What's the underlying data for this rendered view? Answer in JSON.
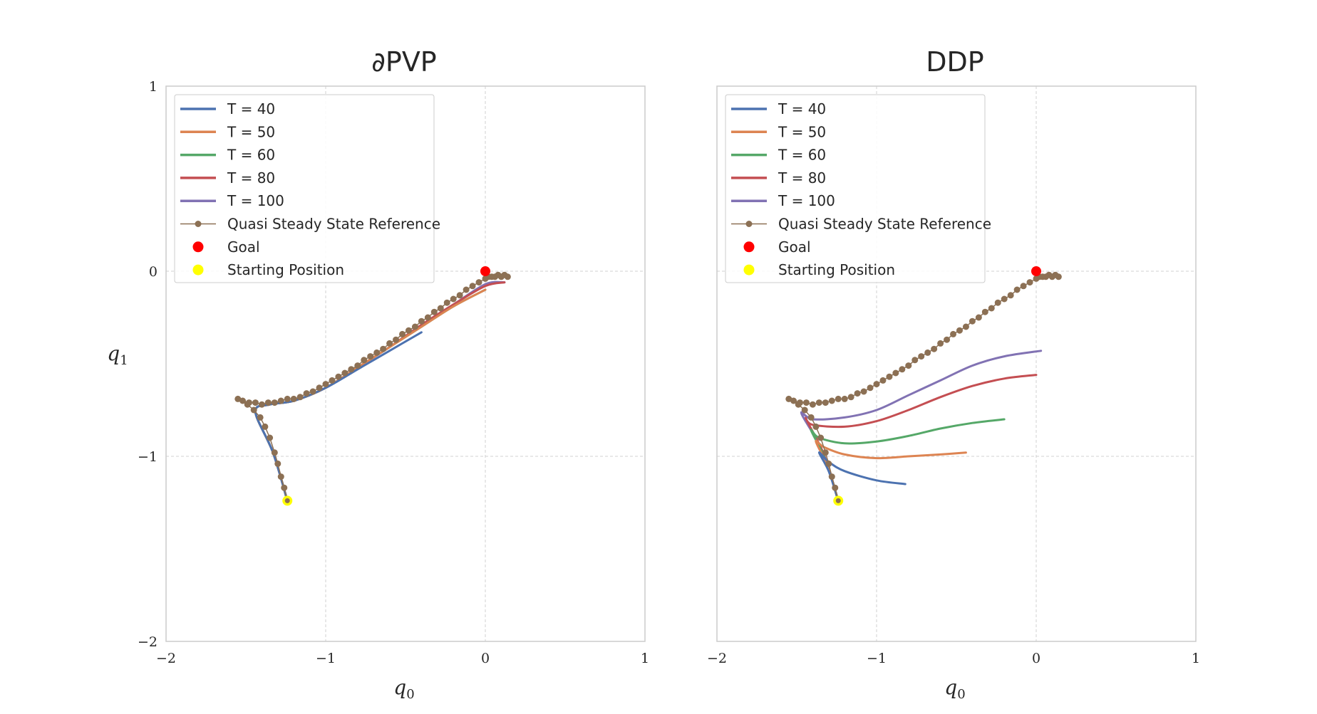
{
  "colors": {
    "T40": "#4c72b0",
    "T50": "#dd8452",
    "T60": "#55a868",
    "T80": "#c44e52",
    "T100": "#8172b3",
    "reference": "#8c7054",
    "goal": "#ff0000",
    "start": "#ffff00",
    "grid": "#d0d0d0",
    "frame": "#cccccc"
  },
  "chart_data": [
    {
      "type": "line",
      "title": "∂PVP",
      "xlabel": "q",
      "xlabel_sub": "0",
      "ylabel": "q",
      "ylabel_sub": "1",
      "xlim": [
        -2,
        1
      ],
      "ylim": [
        -2,
        1
      ],
      "xticks": [
        -2,
        -1,
        0,
        1
      ],
      "yticks": [
        -2,
        -1,
        0,
        1
      ],
      "xtick_labels": [
        "−2",
        "−1",
        "0",
        "1"
      ],
      "ytick_labels": [
        "−2",
        "−1",
        "0",
        "1"
      ],
      "grid": true,
      "legend_position": "top-left",
      "legend": [
        "T = 40",
        "T = 50",
        "T = 60",
        "T = 80",
        "T = 100",
        "Quasi Steady State Reference",
        "Goal",
        "Starting Position"
      ],
      "series": [
        {
          "name": "T = 40",
          "color_key": "T40",
          "points": [
            [
              -1.24,
              -1.24
            ],
            [
              -1.33,
              -0.98
            ],
            [
              -1.44,
              -0.76
            ],
            [
              -1.35,
              -0.72
            ],
            [
              -1.2,
              -0.7
            ],
            [
              -1.0,
              -0.63
            ],
            [
              -0.8,
              -0.53
            ],
            [
              -0.6,
              -0.43
            ],
            [
              -0.4,
              -0.33
            ]
          ]
        },
        {
          "name": "T = 50",
          "color_key": "T50",
          "points": [
            [
              -1.24,
              -1.24
            ],
            [
              -1.33,
              -0.98
            ],
            [
              -1.44,
              -0.76
            ],
            [
              -1.35,
              -0.72
            ],
            [
              -1.2,
              -0.7
            ],
            [
              -1.0,
              -0.63
            ],
            [
              -0.8,
              -0.52
            ],
            [
              -0.6,
              -0.41
            ],
            [
              -0.4,
              -0.3
            ],
            [
              -0.2,
              -0.19
            ],
            [
              0.0,
              -0.1
            ]
          ]
        },
        {
          "name": "T = 60",
          "color_key": "T60",
          "points": [
            [
              -1.24,
              -1.24
            ],
            [
              -1.33,
              -0.98
            ],
            [
              -1.44,
              -0.76
            ],
            [
              -1.35,
              -0.72
            ],
            [
              -1.2,
              -0.7
            ],
            [
              -1.0,
              -0.63
            ],
            [
              -0.8,
              -0.52
            ],
            [
              -0.6,
              -0.41
            ],
            [
              -0.4,
              -0.3
            ],
            [
              -0.2,
              -0.19
            ],
            [
              0.0,
              -0.1
            ]
          ]
        },
        {
          "name": "T = 80",
          "color_key": "T80",
          "points": [
            [
              -1.24,
              -1.24
            ],
            [
              -1.33,
              -0.98
            ],
            [
              -1.44,
              -0.76
            ],
            [
              -1.35,
              -0.72
            ],
            [
              -1.2,
              -0.7
            ],
            [
              -1.0,
              -0.63
            ],
            [
              -0.8,
              -0.52
            ],
            [
              -0.6,
              -0.41
            ],
            [
              -0.4,
              -0.29
            ],
            [
              -0.2,
              -0.18
            ],
            [
              0.0,
              -0.08
            ],
            [
              0.12,
              -0.06
            ]
          ]
        },
        {
          "name": "T = 100",
          "color_key": "T100",
          "points": [
            [
              -1.24,
              -1.24
            ],
            [
              -1.33,
              -0.98
            ],
            [
              -1.44,
              -0.76
            ],
            [
              -1.35,
              -0.72
            ],
            [
              -1.2,
              -0.7
            ],
            [
              -1.0,
              -0.63
            ],
            [
              -0.8,
              -0.52
            ],
            [
              -0.6,
              -0.41
            ],
            [
              -0.4,
              -0.29
            ],
            [
              -0.2,
              -0.18
            ],
            [
              0.0,
              -0.07
            ],
            [
              0.12,
              -0.06
            ]
          ]
        }
      ],
      "reference": {
        "name": "Quasi Steady State Reference",
        "points": [
          [
            -1.24,
            -1.24
          ],
          [
            -1.26,
            -1.17
          ],
          [
            -1.28,
            -1.11
          ],
          [
            -1.3,
            -1.04
          ],
          [
            -1.32,
            -0.98
          ],
          [
            -1.35,
            -0.9
          ],
          [
            -1.38,
            -0.84
          ],
          [
            -1.41,
            -0.79
          ],
          [
            -1.45,
            -0.75
          ],
          [
            -1.49,
            -0.72
          ],
          [
            -1.55,
            -0.69
          ],
          [
            -1.52,
            -0.7
          ],
          [
            -1.48,
            -0.71
          ],
          [
            -1.44,
            -0.71
          ],
          [
            -1.4,
            -0.72
          ],
          [
            -1.36,
            -0.71
          ],
          [
            -1.32,
            -0.71
          ],
          [
            -1.28,
            -0.7
          ],
          [
            -1.24,
            -0.69
          ],
          [
            -1.2,
            -0.69
          ],
          [
            -1.16,
            -0.68
          ],
          [
            -1.12,
            -0.66
          ],
          [
            -1.08,
            -0.65
          ],
          [
            -1.04,
            -0.63
          ],
          [
            -1.0,
            -0.61
          ],
          [
            -0.96,
            -0.59
          ],
          [
            -0.92,
            -0.57
          ],
          [
            -0.88,
            -0.55
          ],
          [
            -0.84,
            -0.53
          ],
          [
            -0.8,
            -0.51
          ],
          [
            -0.76,
            -0.48
          ],
          [
            -0.72,
            -0.46
          ],
          [
            -0.68,
            -0.44
          ],
          [
            -0.64,
            -0.42
          ],
          [
            -0.6,
            -0.39
          ],
          [
            -0.56,
            -0.37
          ],
          [
            -0.52,
            -0.34
          ],
          [
            -0.48,
            -0.32
          ],
          [
            -0.44,
            -0.3
          ],
          [
            -0.4,
            -0.27
          ],
          [
            -0.36,
            -0.25
          ],
          [
            -0.32,
            -0.22
          ],
          [
            -0.28,
            -0.2
          ],
          [
            -0.24,
            -0.17
          ],
          [
            -0.2,
            -0.15
          ],
          [
            -0.16,
            -0.13
          ],
          [
            -0.12,
            -0.1
          ],
          [
            -0.08,
            -0.08
          ],
          [
            -0.04,
            -0.06
          ],
          [
            0.0,
            -0.04
          ],
          [
            0.04,
            -0.03
          ],
          [
            0.08,
            -0.02
          ],
          [
            0.12,
            -0.02
          ],
          [
            0.14,
            -0.03
          ],
          [
            0.1,
            -0.03
          ],
          [
            0.06,
            -0.03
          ],
          [
            0.02,
            -0.03
          ]
        ]
      },
      "goal": [
        0.0,
        0.0
      ],
      "start": [
        -1.24,
        -1.24
      ]
    },
    {
      "type": "line",
      "title": "DDP",
      "xlabel": "q",
      "xlabel_sub": "0",
      "xlim": [
        -2,
        1
      ],
      "ylim": [
        -2,
        1
      ],
      "xticks": [
        -2,
        -1,
        0,
        1
      ],
      "xtick_labels": [
        "−2",
        "−1",
        "0",
        "1"
      ],
      "grid": true,
      "legend_position": "top-left",
      "legend": [
        "T = 40",
        "T = 50",
        "T = 60",
        "T = 80",
        "T = 100",
        "Quasi Steady State Reference",
        "Goal",
        "Starting Position"
      ],
      "series": [
        {
          "name": "T = 40",
          "color_key": "T40",
          "points": [
            [
              -1.24,
              -1.24
            ],
            [
              -1.3,
              -1.08
            ],
            [
              -1.36,
              -0.98
            ],
            [
              -1.3,
              -1.03
            ],
            [
              -1.2,
              -1.08
            ],
            [
              -1.0,
              -1.13
            ],
            [
              -0.82,
              -1.15
            ]
          ]
        },
        {
          "name": "T = 50",
          "color_key": "T50",
          "points": [
            [
              -1.24,
              -1.24
            ],
            [
              -1.31,
              -1.05
            ],
            [
              -1.38,
              -0.92
            ],
            [
              -1.33,
              -0.95
            ],
            [
              -1.2,
              -0.99
            ],
            [
              -1.0,
              -1.01
            ],
            [
              -0.8,
              -1.0
            ],
            [
              -0.6,
              -0.99
            ],
            [
              -0.44,
              -0.98
            ]
          ]
        },
        {
          "name": "T = 60",
          "color_key": "T60",
          "points": [
            [
              -1.24,
              -1.24
            ],
            [
              -1.32,
              -1.02
            ],
            [
              -1.41,
              -0.86
            ],
            [
              -1.36,
              -0.9
            ],
            [
              -1.2,
              -0.93
            ],
            [
              -1.0,
              -0.92
            ],
            [
              -0.8,
              -0.89
            ],
            [
              -0.6,
              -0.85
            ],
            [
              -0.4,
              -0.82
            ],
            [
              -0.2,
              -0.8
            ]
          ]
        },
        {
          "name": "T = 80",
          "color_key": "T80",
          "points": [
            [
              -1.24,
              -1.24
            ],
            [
              -1.33,
              -0.99
            ],
            [
              -1.44,
              -0.8
            ],
            [
              -1.4,
              -0.83
            ],
            [
              -1.2,
              -0.84
            ],
            [
              -1.0,
              -0.81
            ],
            [
              -0.8,
              -0.75
            ],
            [
              -0.6,
              -0.68
            ],
            [
              -0.4,
              -0.62
            ],
            [
              -0.2,
              -0.58
            ],
            [
              0.0,
              -0.56
            ]
          ]
        },
        {
          "name": "T = 100",
          "color_key": "T100",
          "points": [
            [
              -1.24,
              -1.24
            ],
            [
              -1.34,
              -0.97
            ],
            [
              -1.47,
              -0.77
            ],
            [
              -1.4,
              -0.8
            ],
            [
              -1.2,
              -0.79
            ],
            [
              -1.0,
              -0.75
            ],
            [
              -0.8,
              -0.67
            ],
            [
              -0.6,
              -0.59
            ],
            [
              -0.4,
              -0.51
            ],
            [
              -0.2,
              -0.46
            ],
            [
              0.03,
              -0.43
            ]
          ]
        }
      ],
      "reference": {
        "name": "Quasi Steady State Reference",
        "points": [
          [
            -1.24,
            -1.24
          ],
          [
            -1.26,
            -1.17
          ],
          [
            -1.28,
            -1.11
          ],
          [
            -1.3,
            -1.04
          ],
          [
            -1.32,
            -0.98
          ],
          [
            -1.35,
            -0.9
          ],
          [
            -1.38,
            -0.84
          ],
          [
            -1.41,
            -0.79
          ],
          [
            -1.45,
            -0.75
          ],
          [
            -1.49,
            -0.72
          ],
          [
            -1.55,
            -0.69
          ],
          [
            -1.52,
            -0.7
          ],
          [
            -1.48,
            -0.71
          ],
          [
            -1.44,
            -0.71
          ],
          [
            -1.4,
            -0.72
          ],
          [
            -1.36,
            -0.71
          ],
          [
            -1.32,
            -0.71
          ],
          [
            -1.28,
            -0.7
          ],
          [
            -1.24,
            -0.69
          ],
          [
            -1.2,
            -0.69
          ],
          [
            -1.16,
            -0.68
          ],
          [
            -1.12,
            -0.66
          ],
          [
            -1.08,
            -0.65
          ],
          [
            -1.04,
            -0.63
          ],
          [
            -1.0,
            -0.61
          ],
          [
            -0.96,
            -0.59
          ],
          [
            -0.92,
            -0.57
          ],
          [
            -0.88,
            -0.55
          ],
          [
            -0.84,
            -0.53
          ],
          [
            -0.8,
            -0.51
          ],
          [
            -0.76,
            -0.48
          ],
          [
            -0.72,
            -0.46
          ],
          [
            -0.68,
            -0.44
          ],
          [
            -0.64,
            -0.42
          ],
          [
            -0.6,
            -0.39
          ],
          [
            -0.56,
            -0.37
          ],
          [
            -0.52,
            -0.34
          ],
          [
            -0.48,
            -0.32
          ],
          [
            -0.44,
            -0.3
          ],
          [
            -0.4,
            -0.27
          ],
          [
            -0.36,
            -0.25
          ],
          [
            -0.32,
            -0.22
          ],
          [
            -0.28,
            -0.2
          ],
          [
            -0.24,
            -0.17
          ],
          [
            -0.2,
            -0.15
          ],
          [
            -0.16,
            -0.13
          ],
          [
            -0.12,
            -0.1
          ],
          [
            -0.08,
            -0.08
          ],
          [
            -0.04,
            -0.06
          ],
          [
            0.0,
            -0.04
          ],
          [
            0.04,
            -0.03
          ],
          [
            0.08,
            -0.02
          ],
          [
            0.12,
            -0.02
          ],
          [
            0.14,
            -0.03
          ],
          [
            0.1,
            -0.03
          ],
          [
            0.06,
            -0.03
          ],
          [
            0.02,
            -0.03
          ]
        ]
      },
      "goal": [
        0.0,
        0.0
      ],
      "start": [
        -1.24,
        -1.24
      ]
    }
  ]
}
